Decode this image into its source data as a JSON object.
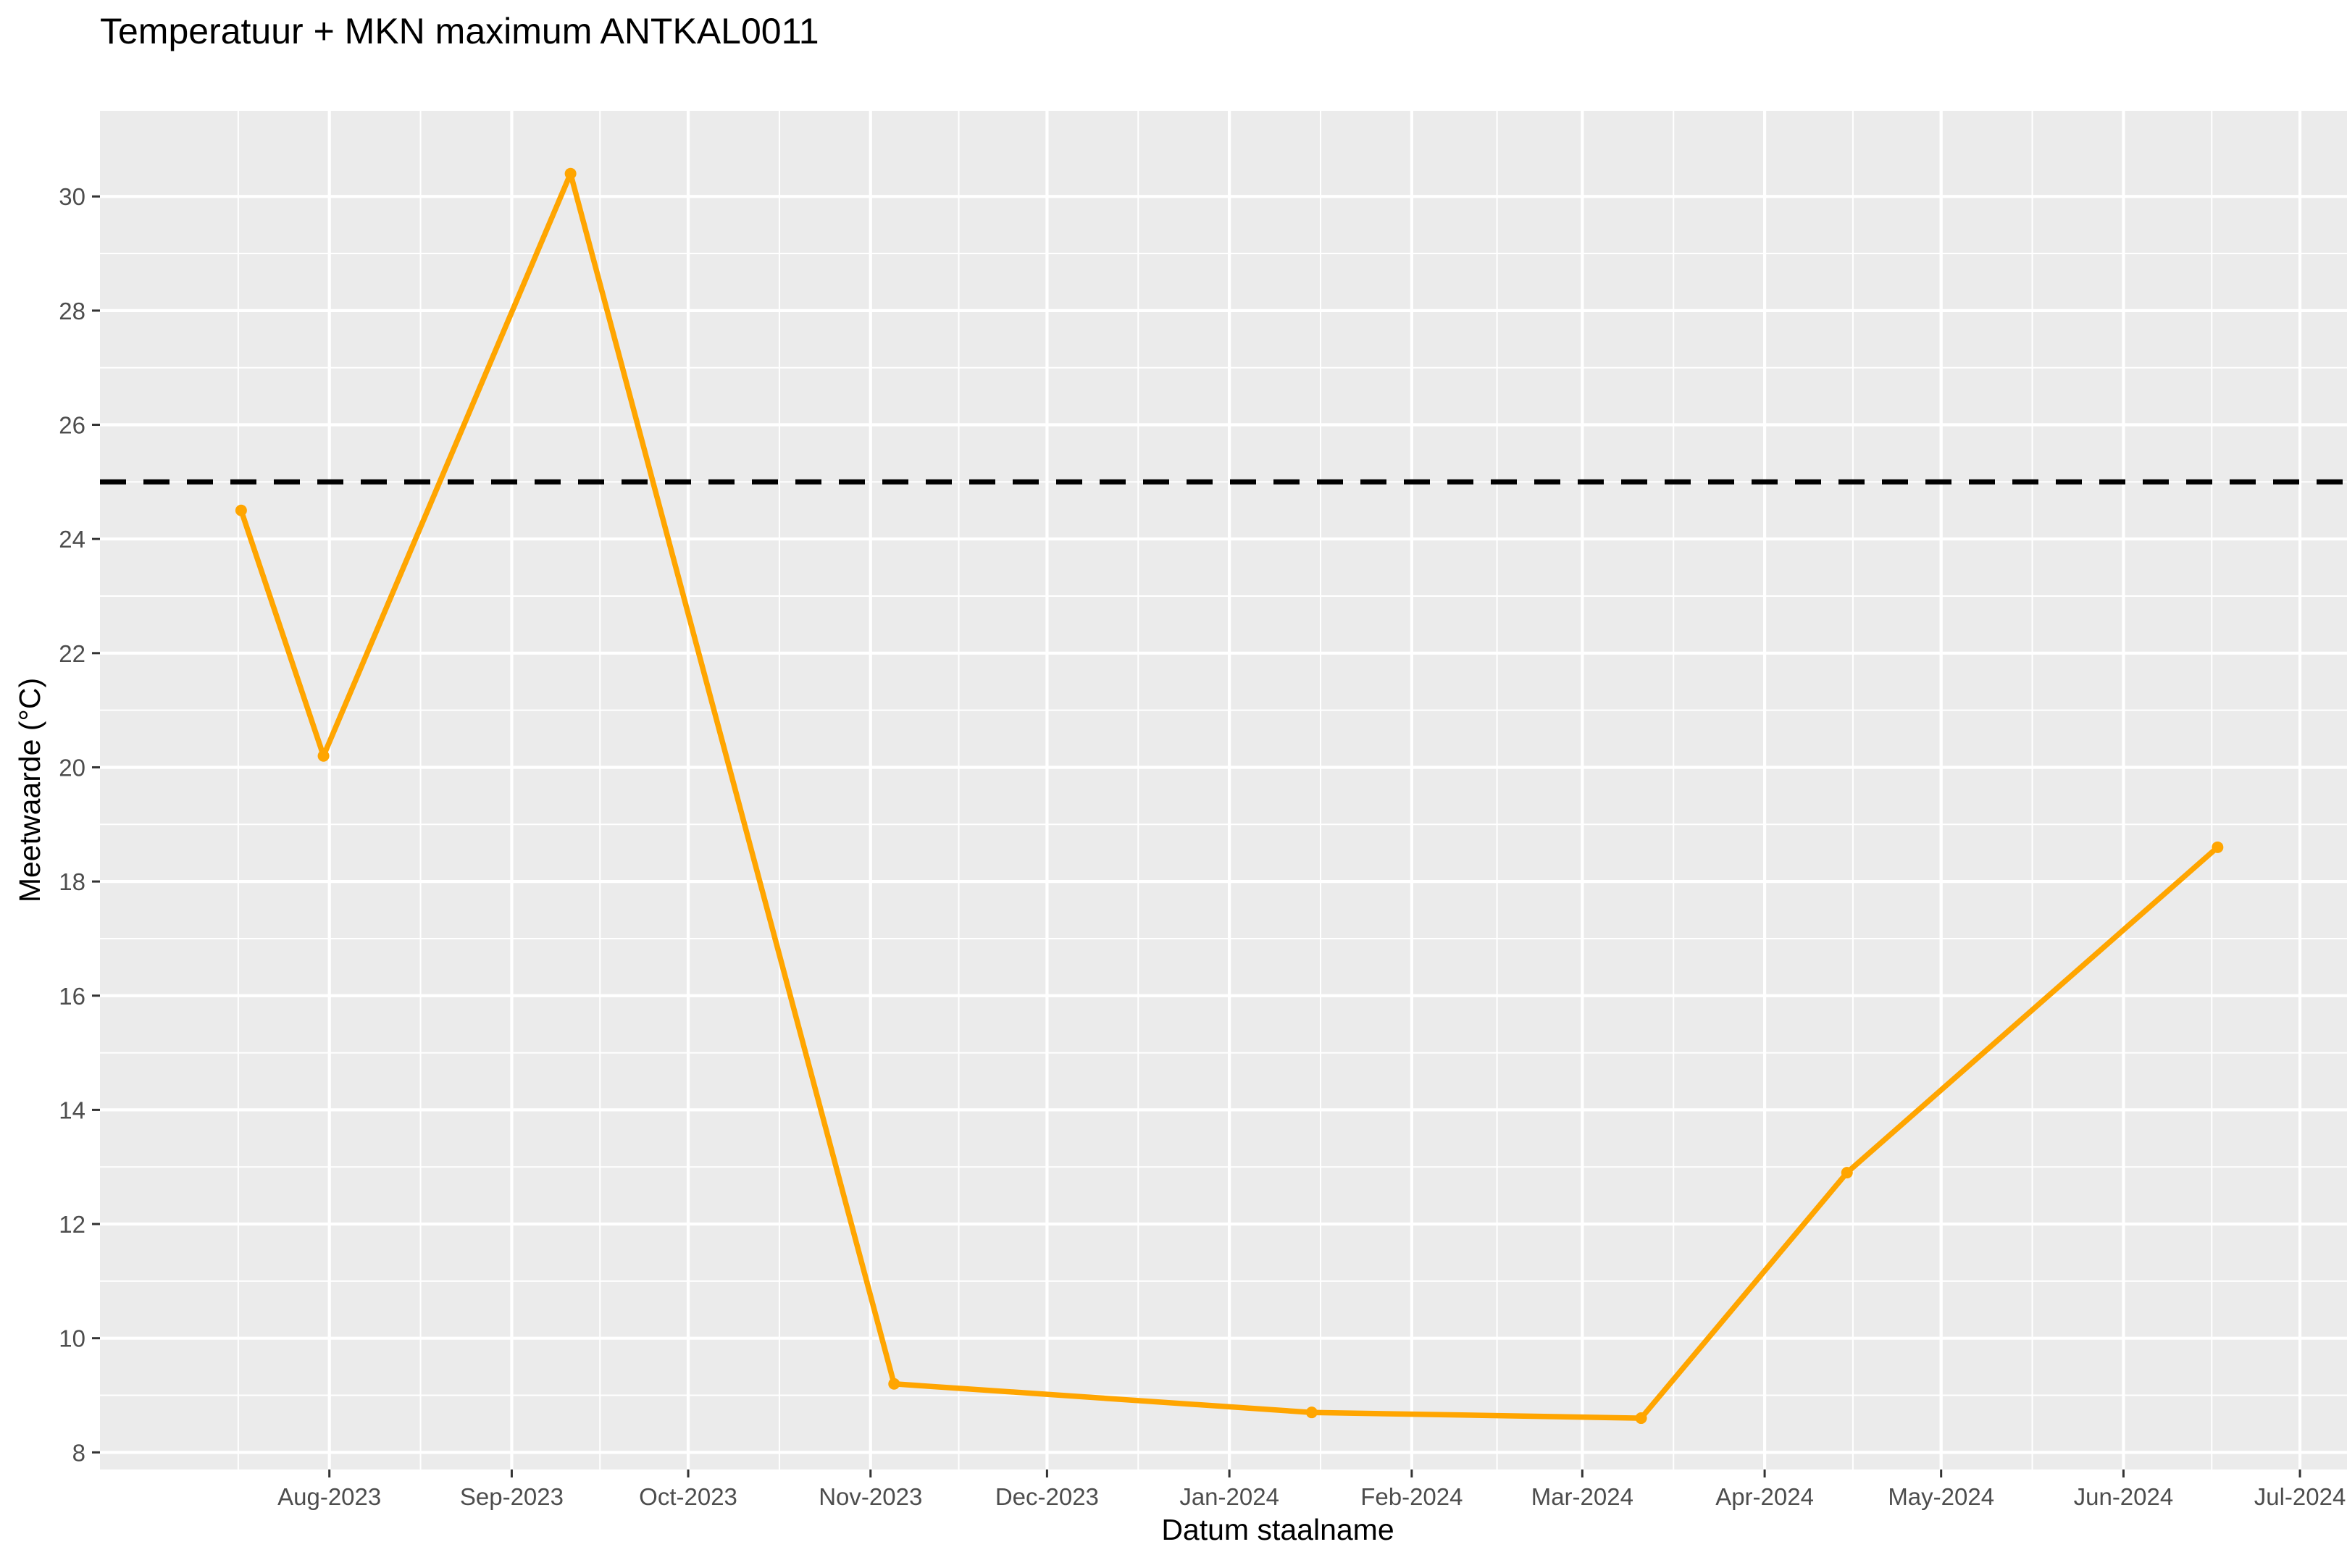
{
  "chart_data": {
    "type": "line",
    "title": "Temperatuur + MKN maximum ANTKAL0011",
    "xlabel": "Datum staalname",
    "ylabel": "Meetwaarde (°C)",
    "x_axis_type": "date",
    "xlim": [
      "2023-06-23",
      "2024-07-09"
    ],
    "ylim": [
      7.7,
      31.5
    ],
    "y_ticks": [
      8,
      10,
      12,
      14,
      16,
      18,
      20,
      22,
      24,
      26,
      28,
      30
    ],
    "x_ticks": [
      {
        "date": "2023-08-01",
        "label": "Aug-2023"
      },
      {
        "date": "2023-09-01",
        "label": "Sep-2023"
      },
      {
        "date": "2023-10-01",
        "label": "Oct-2023"
      },
      {
        "date": "2023-11-01",
        "label": "Nov-2023"
      },
      {
        "date": "2023-12-01",
        "label": "Dec-2023"
      },
      {
        "date": "2024-01-01",
        "label": "Jan-2024"
      },
      {
        "date": "2024-02-01",
        "label": "Feb-2024"
      },
      {
        "date": "2024-03-01",
        "label": "Mar-2024"
      },
      {
        "date": "2024-04-01",
        "label": "Apr-2024"
      },
      {
        "date": "2024-05-01",
        "label": "May-2024"
      },
      {
        "date": "2024-06-01",
        "label": "Jun-2024"
      },
      {
        "date": "2024-07-01",
        "label": "Jul-2024"
      }
    ],
    "series": [
      {
        "color": "#FFA500",
        "points": [
          {
            "x": "2023-07-17",
            "y": 24.5
          },
          {
            "x": "2023-07-31",
            "y": 20.2
          },
          {
            "x": "2023-09-11",
            "y": 30.4
          },
          {
            "x": "2023-11-05",
            "y": 9.2
          },
          {
            "x": "2024-01-15",
            "y": 8.7
          },
          {
            "x": "2024-03-11",
            "y": 8.6
          },
          {
            "x": "2024-04-15",
            "y": 12.9
          },
          {
            "x": "2024-06-17",
            "y": 18.6
          }
        ]
      }
    ],
    "reference_lines": [
      {
        "y": 25,
        "style": "dashed",
        "color": "#000000"
      }
    ],
    "grid": true,
    "panel_background": "#EBEBEB",
    "gridline_color": "#FFFFFF"
  }
}
